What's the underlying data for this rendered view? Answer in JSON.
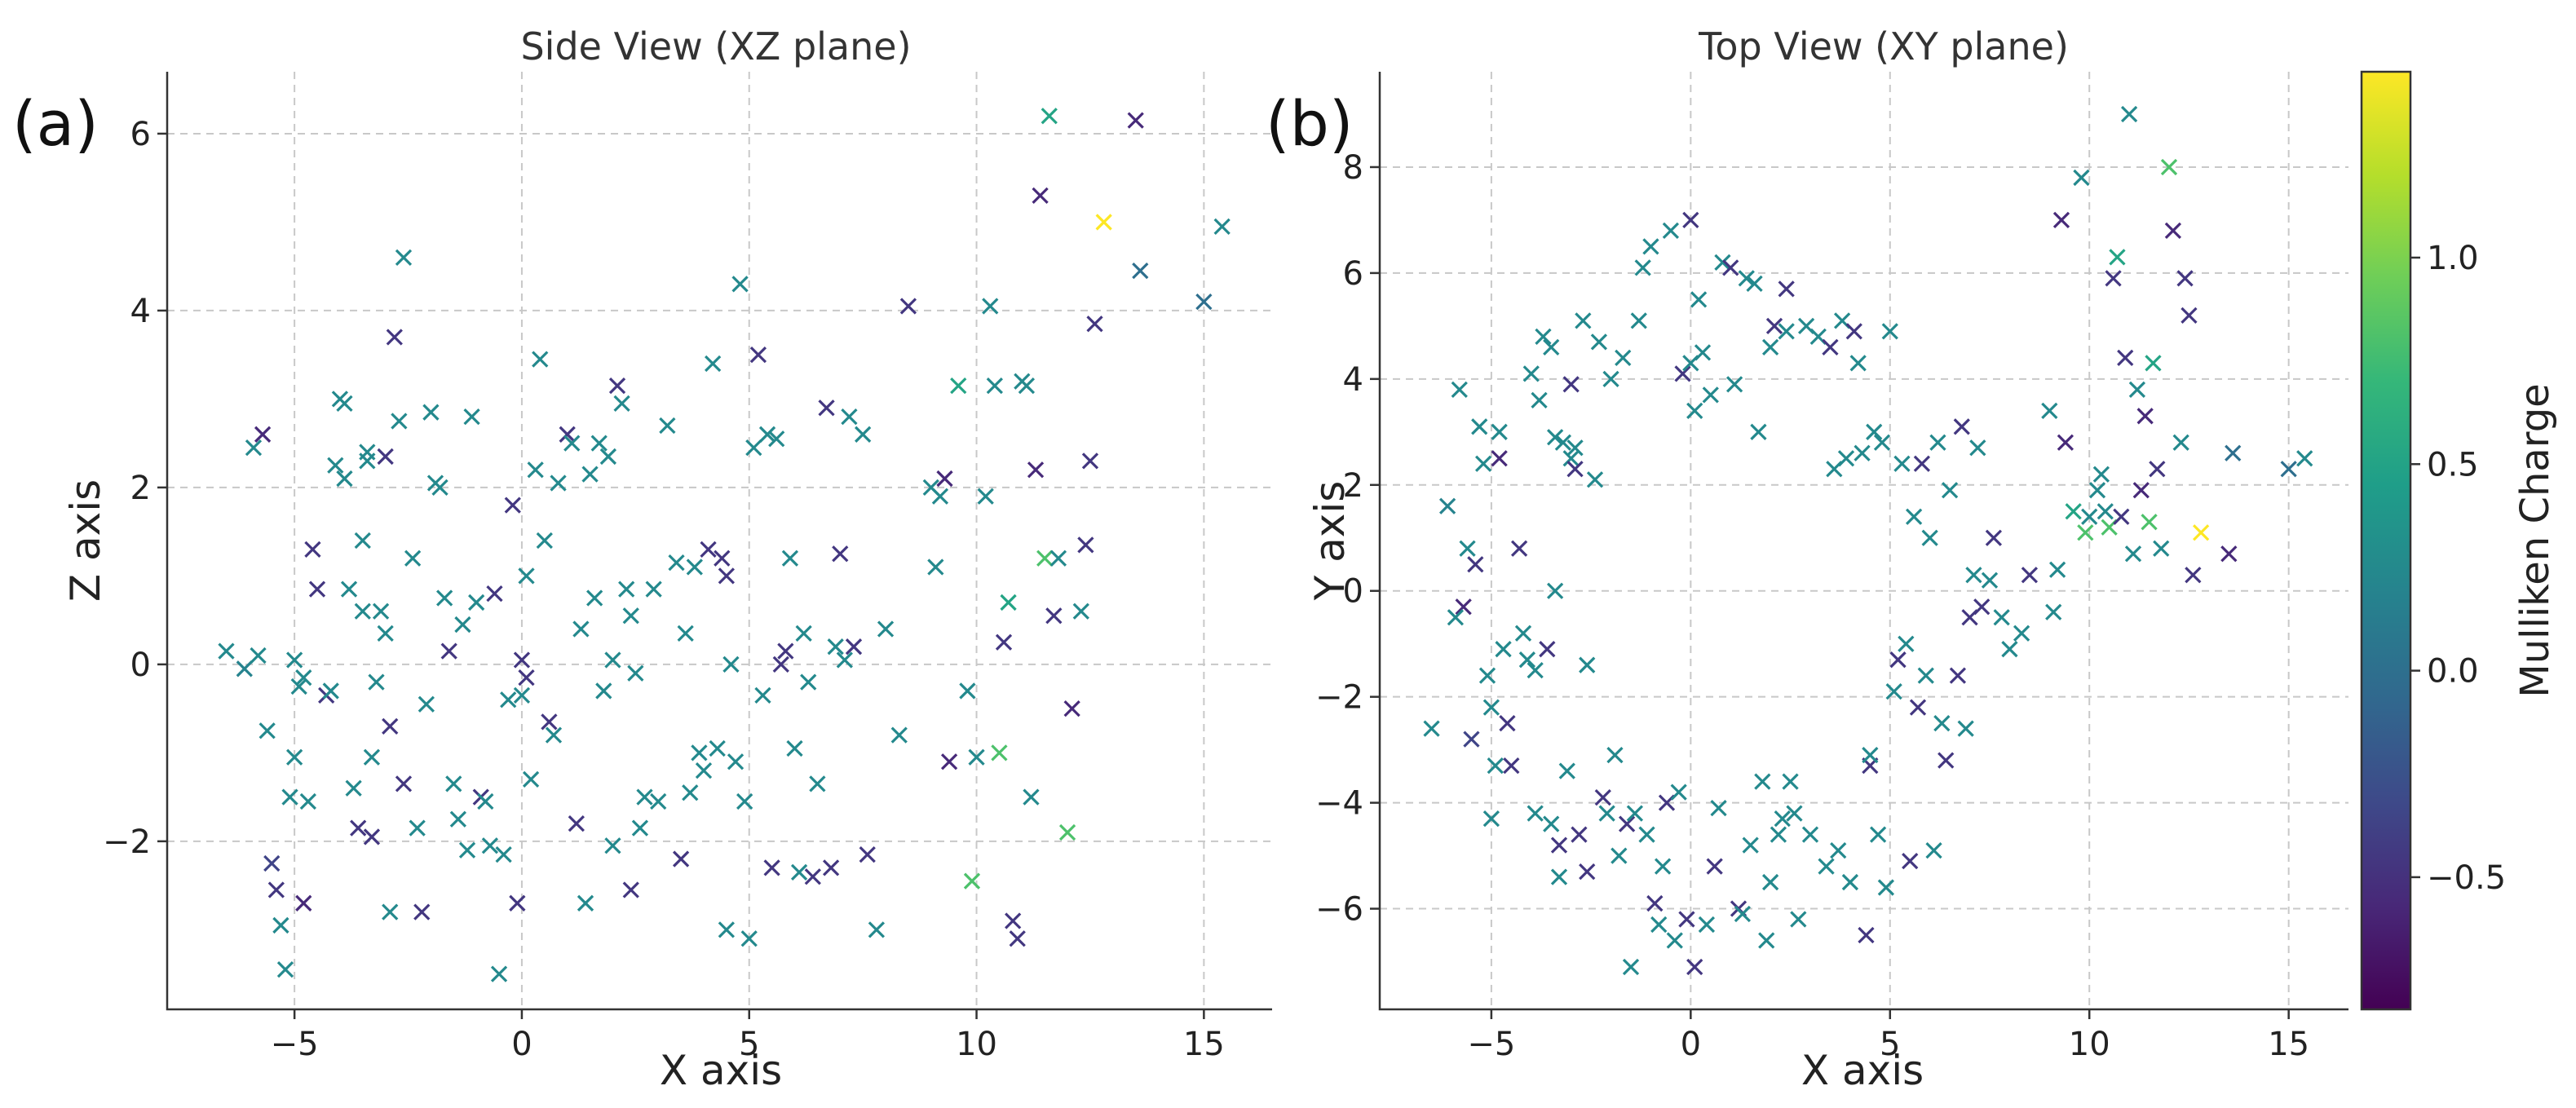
{
  "colors": {
    "colormap": "viridis",
    "viridis_stops": [
      "#440154",
      "#482878",
      "#3e4989",
      "#31688e",
      "#26828e",
      "#1f9e89",
      "#35b779",
      "#6ece58",
      "#b5de2b",
      "#fde725"
    ],
    "grid": "#c8c8c8",
    "axis": "#333333"
  },
  "colorbar": {
    "label": "Mulliken Charge",
    "range": [
      -0.82,
      1.45
    ],
    "ticks": [
      {
        "value": -0.5,
        "label": "−0.5"
      },
      {
        "value": 0.0,
        "label": "0.0"
      },
      {
        "value": 0.5,
        "label": "0.5"
      },
      {
        "value": 1.0,
        "label": "1.0"
      }
    ]
  },
  "points": [
    [
      -6.5,
      -2.6,
      0.15,
      0.25
    ],
    [
      -6.1,
      1.6,
      -0.05,
      0.2
    ],
    [
      -5.8,
      3.8,
      0.1,
      0.25
    ],
    [
      -5.6,
      0.8,
      -0.75,
      0.25
    ],
    [
      -5.7,
      -0.3,
      2.6,
      -0.55
    ],
    [
      -5.9,
      -0.5,
      2.45,
      0.25
    ],
    [
      -5.5,
      -2.8,
      -2.25,
      -0.35
    ],
    [
      -5.4,
      0.5,
      -2.55,
      -0.45
    ],
    [
      -5.3,
      3.1,
      -2.95,
      0.25
    ],
    [
      -5.2,
      2.4,
      -3.45,
      0.25
    ],
    [
      -5.1,
      -1.6,
      -1.5,
      0.25
    ],
    [
      -5.0,
      -2.2,
      0.05,
      0.25
    ],
    [
      -5.0,
      -4.3,
      -1.05,
      0.25
    ],
    [
      -4.9,
      -3.3,
      -0.25,
      0.25
    ],
    [
      -4.8,
      2.5,
      -2.7,
      -0.55
    ],
    [
      -4.7,
      -1.1,
      -1.55,
      0.25
    ],
    [
      -4.8,
      3.0,
      -0.15,
      0.25
    ],
    [
      -4.6,
      -2.5,
      1.3,
      -0.45
    ],
    [
      -4.5,
      -3.3,
      0.85,
      -0.45
    ],
    [
      -4.3,
      0.8,
      -0.35,
      -0.45
    ],
    [
      -4.2,
      -0.8,
      -0.3,
      0.25
    ],
    [
      -4.1,
      -1.3,
      2.25,
      0.25
    ],
    [
      -4.0,
      4.1,
      3.0,
      0.25
    ],
    [
      -3.9,
      -1.5,
      2.95,
      0.25
    ],
    [
      -3.9,
      -4.2,
      2.1,
      0.25
    ],
    [
      -3.8,
      3.6,
      0.85,
      0.25
    ],
    [
      -3.7,
      4.8,
      -1.4,
      0.25
    ],
    [
      -3.6,
      -1.1,
      -1.85,
      -0.45
    ],
    [
      -3.5,
      -4.4,
      0.6,
      0.25
    ],
    [
      -3.5,
      4.6,
      1.4,
      0.25
    ],
    [
      -3.4,
      2.9,
      2.4,
      0.25
    ],
    [
      -3.4,
      0.0,
      2.3,
      0.25
    ],
    [
      -3.3,
      -4.8,
      -1.95,
      -0.45
    ],
    [
      -3.3,
      -5.4,
      -1.05,
      0.25
    ],
    [
      -3.2,
      2.8,
      -0.2,
      0.25
    ],
    [
      -3.1,
      -3.4,
      0.6,
      0.25
    ],
    [
      -3.0,
      3.9,
      2.35,
      -0.45
    ],
    [
      -3.0,
      2.5,
      0.35,
      0.25
    ],
    [
      -2.9,
      2.7,
      -2.8,
      0.25
    ],
    [
      -2.9,
      2.3,
      -0.7,
      -0.45
    ],
    [
      -2.8,
      -4.6,
      3.7,
      -0.45
    ],
    [
      -2.7,
      5.1,
      2.75,
      0.25
    ],
    [
      -2.6,
      -5.3,
      -1.35,
      -0.45
    ],
    [
      -2.6,
      -1.4,
      4.6,
      0.25
    ],
    [
      -2.4,
      2.1,
      1.2,
      0.25
    ],
    [
      -2.3,
      4.7,
      -1.85,
      0.25
    ],
    [
      -2.2,
      -3.9,
      -2.8,
      -0.45
    ],
    [
      -2.1,
      -4.2,
      -0.45,
      0.25
    ],
    [
      -2.0,
      4.0,
      2.85,
      0.25
    ],
    [
      -1.9,
      -3.1,
      2.05,
      0.25
    ],
    [
      -1.8,
      -5.0,
      2.0,
      0.25
    ],
    [
      -1.7,
      4.4,
      0.75,
      0.25
    ],
    [
      -1.6,
      -4.4,
      0.15,
      -0.45
    ],
    [
      -1.5,
      -7.1,
      -1.35,
      0.25
    ],
    [
      -1.4,
      -4.2,
      -1.75,
      0.25
    ],
    [
      -1.3,
      5.1,
      0.45,
      0.25
    ],
    [
      -1.2,
      6.1,
      -2.1,
      0.25
    ],
    [
      -1.1,
      -4.6,
      2.8,
      0.25
    ],
    [
      -1.0,
      6.5,
      0.7,
      0.25
    ],
    [
      -0.9,
      -5.9,
      -1.5,
      -0.45
    ],
    [
      -0.8,
      -6.3,
      -1.55,
      0.25
    ],
    [
      -0.7,
      -5.2,
      -2.05,
      0.25
    ],
    [
      -0.6,
      -4.0,
      0.8,
      -0.45
    ],
    [
      -0.5,
      6.8,
      -3.5,
      0.25
    ],
    [
      -0.4,
      -6.6,
      -2.15,
      0.25
    ],
    [
      -0.3,
      -3.8,
      -0.4,
      0.25
    ],
    [
      -0.2,
      4.1,
      1.8,
      -0.45
    ],
    [
      -0.1,
      -6.2,
      -2.7,
      -0.45
    ],
    [
      0.0,
      7.0,
      0.05,
      -0.45
    ],
    [
      0.0,
      4.3,
      -0.35,
      0.25
    ],
    [
      0.1,
      -7.1,
      -0.15,
      -0.45
    ],
    [
      0.1,
      3.4,
      1.0,
      0.25
    ],
    [
      0.2,
      5.5,
      -1.3,
      0.25
    ],
    [
      0.3,
      4.5,
      2.2,
      0.25
    ],
    [
      0.4,
      -6.3,
      3.45,
      0.25
    ],
    [
      0.5,
      3.7,
      1.4,
      0.25
    ],
    [
      0.6,
      -5.2,
      -0.65,
      -0.45
    ],
    [
      0.7,
      -4.1,
      -0.8,
      0.25
    ],
    [
      0.8,
      6.2,
      2.05,
      0.25
    ],
    [
      1.0,
      6.1,
      2.6,
      -0.45
    ],
    [
      1.1,
      3.9,
      2.5,
      0.25
    ],
    [
      1.2,
      -6.0,
      -1.8,
      -0.45
    ],
    [
      1.3,
      -6.1,
      0.4,
      0.25
    ],
    [
      1.4,
      5.9,
      -2.7,
      0.25
    ],
    [
      1.5,
      -4.8,
      2.15,
      0.25
    ],
    [
      1.6,
      5.8,
      0.75,
      0.25
    ],
    [
      1.7,
      3.0,
      2.5,
      0.25
    ],
    [
      1.8,
      -3.6,
      -0.3,
      0.25
    ],
    [
      1.9,
      -6.6,
      2.35,
      0.25
    ],
    [
      2.0,
      -5.5,
      -2.05,
      0.25
    ],
    [
      2.0,
      4.6,
      0.05,
      0.25
    ],
    [
      2.1,
      5.0,
      3.15,
      -0.45
    ],
    [
      2.2,
      -4.6,
      2.95,
      0.25
    ],
    [
      2.3,
      -4.3,
      0.85,
      0.25
    ],
    [
      2.4,
      4.9,
      0.55,
      0.25
    ],
    [
      2.4,
      5.7,
      -2.55,
      -0.45
    ],
    [
      2.5,
      -3.6,
      -0.1,
      0.25
    ],
    [
      2.6,
      -4.2,
      -1.85,
      0.25
    ],
    [
      2.7,
      -6.2,
      -1.5,
      0.25
    ],
    [
      2.9,
      5.0,
      0.85,
      0.25
    ],
    [
      3.0,
      -4.6,
      -1.55,
      0.25
    ],
    [
      3.2,
      4.8,
      2.7,
      0.25
    ],
    [
      3.4,
      -5.2,
      1.15,
      0.25
    ],
    [
      3.5,
      4.6,
      -2.2,
      -0.45
    ],
    [
      3.6,
      2.3,
      0.35,
      0.25
    ],
    [
      3.7,
      -4.9,
      -1.45,
      0.25
    ],
    [
      3.8,
      5.1,
      1.1,
      0.25
    ],
    [
      3.9,
      2.5,
      -1.0,
      0.25
    ],
    [
      4.0,
      -5.5,
      -1.2,
      0.25
    ],
    [
      4.1,
      4.9,
      1.3,
      -0.45
    ],
    [
      4.2,
      4.3,
      3.4,
      0.25
    ],
    [
      4.3,
      2.6,
      -0.95,
      0.25
    ],
    [
      4.4,
      -6.5,
      1.2,
      -0.45
    ],
    [
      4.5,
      -3.3,
      1.0,
      -0.45
    ],
    [
      4.5,
      -3.1,
      -3.0,
      0.25
    ],
    [
      4.6,
      3.0,
      0.0,
      0.25
    ],
    [
      4.7,
      -4.6,
      -1.1,
      0.25
    ],
    [
      4.8,
      2.8,
      4.3,
      0.25
    ],
    [
      4.9,
      -5.6,
      -1.55,
      0.25
    ],
    [
      5.0,
      4.9,
      -3.1,
      0.25
    ],
    [
      5.1,
      -1.9,
      2.45,
      0.25
    ],
    [
      5.2,
      -1.3,
      3.5,
      -0.45
    ],
    [
      5.3,
      2.4,
      -0.35,
      0.25
    ],
    [
      5.4,
      -1.0,
      2.6,
      0.25
    ],
    [
      5.5,
      -5.1,
      -2.3,
      -0.45
    ],
    [
      5.6,
      1.4,
      2.55,
      0.25
    ],
    [
      5.7,
      -2.2,
      0.0,
      -0.45
    ],
    [
      5.8,
      2.4,
      0.15,
      -0.45
    ],
    [
      5.9,
      -1.6,
      1.2,
      0.25
    ],
    [
      6.0,
      1.0,
      -0.95,
      0.25
    ],
    [
      6.1,
      -4.9,
      -2.35,
      0.25
    ],
    [
      6.2,
      2.8,
      0.35,
      0.25
    ],
    [
      6.3,
      -2.5,
      -0.2,
      0.25
    ],
    [
      6.4,
      -3.2,
      -2.4,
      -0.45
    ],
    [
      6.5,
      1.9,
      -1.35,
      0.25
    ],
    [
      6.7,
      -1.6,
      2.9,
      -0.45
    ],
    [
      6.8,
      3.1,
      -2.3,
      -0.45
    ],
    [
      6.9,
      -2.6,
      0.2,
      0.25
    ],
    [
      7.0,
      -0.5,
      1.25,
      -0.45
    ],
    [
      7.1,
      0.3,
      0.05,
      0.25
    ],
    [
      7.2,
      2.7,
      2.8,
      0.25
    ],
    [
      7.3,
      -0.3,
      0.2,
      -0.45
    ],
    [
      7.5,
      0.2,
      2.6,
      0.25
    ],
    [
      7.6,
      1.0,
      -2.15,
      -0.45
    ],
    [
      7.8,
      -0.5,
      -3.0,
      0.25
    ],
    [
      8.0,
      -1.1,
      0.4,
      0.25
    ],
    [
      8.3,
      -0.8,
      -0.8,
      0.25
    ],
    [
      8.5,
      0.3,
      4.05,
      -0.45
    ],
    [
      9.0,
      3.4,
      2.0,
      0.25
    ],
    [
      9.1,
      -0.4,
      1.1,
      0.25
    ],
    [
      9.2,
      0.4,
      1.9,
      0.25
    ],
    [
      9.3,
      7.0,
      2.1,
      -0.55
    ],
    [
      9.4,
      2.8,
      -1.1,
      -0.55
    ],
    [
      9.6,
      1.5,
      3.15,
      0.5
    ],
    [
      9.8,
      7.8,
      -0.3,
      0.25
    ],
    [
      9.9,
      1.1,
      -2.45,
      0.8
    ],
    [
      10.0,
      1.4,
      -1.05,
      0.25
    ],
    [
      10.2,
      1.9,
      1.9,
      0.25
    ],
    [
      10.3,
      2.2,
      4.05,
      0.25
    ],
    [
      10.4,
      1.5,
      3.15,
      0.25
    ],
    [
      10.5,
      1.2,
      -1.0,
      0.8
    ],
    [
      10.6,
      5.9,
      0.25,
      -0.45
    ],
    [
      10.7,
      6.3,
      0.7,
      0.5
    ],
    [
      10.8,
      1.4,
      -2.9,
      -0.45
    ],
    [
      10.9,
      4.4,
      -3.1,
      -0.45
    ],
    [
      11.0,
      9.0,
      3.2,
      0.25
    ],
    [
      11.1,
      0.7,
      3.15,
      0.25
    ],
    [
      11.2,
      3.8,
      -1.5,
      0.25
    ],
    [
      11.3,
      1.9,
      2.2,
      -0.55
    ],
    [
      11.4,
      3.3,
      5.3,
      -0.55
    ],
    [
      11.5,
      1.3,
      1.2,
      0.8
    ],
    [
      11.6,
      4.3,
      6.2,
      0.5
    ],
    [
      11.7,
      2.3,
      0.55,
      -0.45
    ],
    [
      11.8,
      0.8,
      1.2,
      0.25
    ],
    [
      12.0,
      8.0,
      -1.9,
      0.8
    ],
    [
      12.1,
      6.8,
      -0.5,
      -0.55
    ],
    [
      12.3,
      2.8,
      0.6,
      0.25
    ],
    [
      12.4,
      5.9,
      1.35,
      -0.45
    ],
    [
      12.5,
      5.2,
      2.3,
      -0.45
    ],
    [
      12.6,
      0.3,
      3.85,
      -0.45
    ],
    [
      12.8,
      1.1,
      5.0,
      1.45
    ],
    [
      13.5,
      0.7,
      6.15,
      -0.55
    ],
    [
      13.6,
      2.6,
      4.45,
      0.0
    ],
    [
      15.0,
      2.3,
      4.1,
      0.0
    ],
    [
      15.4,
      2.5,
      4.95,
      0.25
    ]
  ],
  "chart_data": [
    {
      "type": "scatter",
      "panel": "(a)",
      "title": "Side View (XZ plane)",
      "xlabel": "X axis",
      "ylabel": "Z axis",
      "xlim": [
        -7.8,
        16.5
      ],
      "ylim": [
        -3.9,
        6.7
      ],
      "xticks": [
        {
          "value": -5,
          "label": "−5"
        },
        {
          "value": 0,
          "label": "0"
        },
        {
          "value": 5,
          "label": "5"
        },
        {
          "value": 10,
          "label": "10"
        },
        {
          "value": 15,
          "label": "15"
        }
      ],
      "yticks": [
        {
          "value": -2,
          "label": "−2"
        },
        {
          "value": 0,
          "label": "0"
        },
        {
          "value": 2,
          "label": "2"
        },
        {
          "value": 4,
          "label": "4"
        },
        {
          "value": 6,
          "label": "6"
        }
      ],
      "x_field": "x",
      "y_field": "z",
      "marker": "x",
      "grid": true,
      "color_by": "Mulliken Charge"
    },
    {
      "type": "scatter",
      "panel": "(b)",
      "title": "Top View (XY plane)",
      "xlabel": "X axis",
      "ylabel": "Y axis",
      "xlim": [
        -7.8,
        16.5
      ],
      "ylim": [
        -7.9,
        9.8
      ],
      "xticks": [
        {
          "value": -5,
          "label": "−5"
        },
        {
          "value": 0,
          "label": "0"
        },
        {
          "value": 5,
          "label": "5"
        },
        {
          "value": 10,
          "label": "10"
        },
        {
          "value": 15,
          "label": "15"
        }
      ],
      "yticks": [
        {
          "value": -6,
          "label": "−6"
        },
        {
          "value": -4,
          "label": "−4"
        },
        {
          "value": -2,
          "label": "−2"
        },
        {
          "value": 0,
          "label": "0"
        },
        {
          "value": 2,
          "label": "2"
        },
        {
          "value": 4,
          "label": "4"
        },
        {
          "value": 6,
          "label": "6"
        },
        {
          "value": 8,
          "label": "8"
        }
      ],
      "x_field": "x",
      "y_field": "y",
      "marker": "x",
      "grid": true,
      "color_by": "Mulliken Charge"
    }
  ]
}
